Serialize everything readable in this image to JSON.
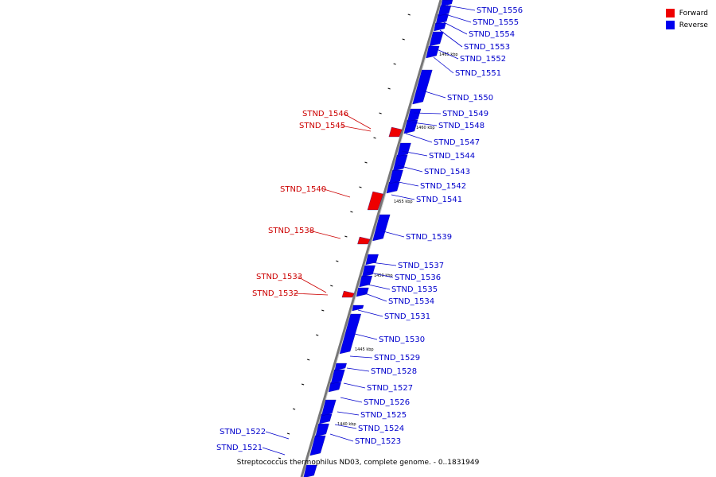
{
  "legend": {
    "forward": {
      "label": "Forward",
      "color": "#ee0000"
    },
    "reverse": {
      "label": "Reverse",
      "color": "#0000ee"
    }
  },
  "caption": "Streptococcus thermophilus ND03, complete genome. - 0..1831949",
  "scale_ticks": [
    "1465 kbp",
    "1460 kbp",
    "1455 kbp",
    "1450 kbp",
    "1445 kbp",
    "1440 kbp"
  ],
  "genes_reverse": [
    "STND_1556",
    "STND_1555",
    "STND_1554",
    "STND_1553",
    "STND_1552",
    "STND_1551",
    "STND_1550",
    "STND_1549",
    "STND_1548",
    "STND_1547",
    "STND_1544",
    "STND_1543",
    "STND_1542",
    "STND_1541",
    "STND_1539",
    "STND_1537",
    "STND_1536",
    "STND_1535",
    "STND_1534",
    "STND_1531",
    "STND_1530",
    "STND_1529",
    "STND_1528",
    "STND_1527",
    "STND_1526",
    "STND_1525",
    "STND_1524",
    "STND_1523",
    "STND_1522",
    "STND_1521"
  ],
  "genes_forward": [
    "STND_1546",
    "STND_1545",
    "STND_1540",
    "STND_1538",
    "STND_1533",
    "STND_1532"
  ]
}
